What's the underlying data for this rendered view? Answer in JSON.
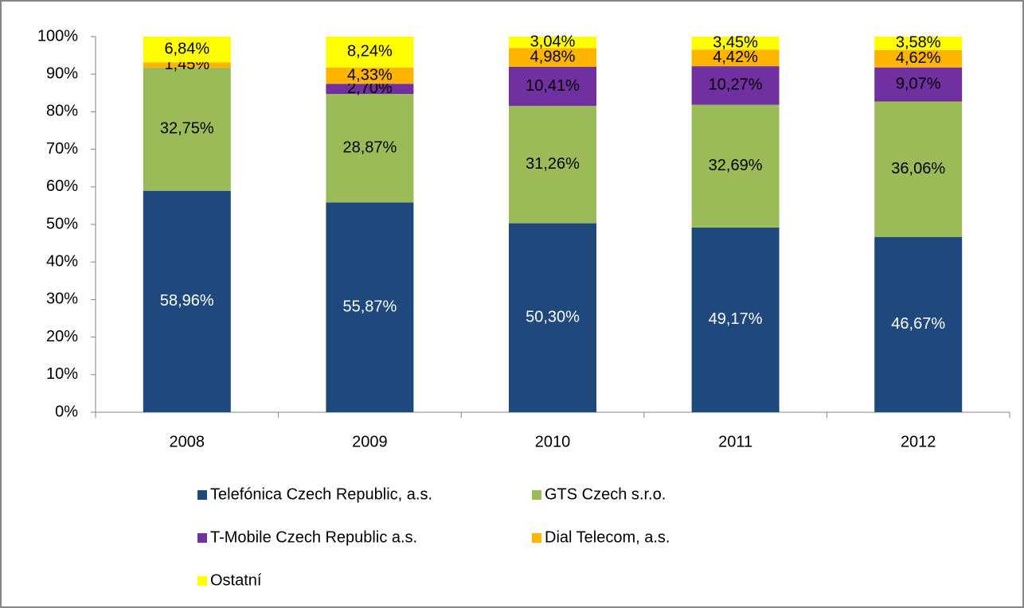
{
  "chart_data": {
    "type": "stacked_bar",
    "categories": [
      "2008",
      "2009",
      "2010",
      "2011",
      "2012"
    ],
    "series": [
      {
        "name": "Telefónica Czech Republic, a.s.",
        "color": "#1f497d",
        "values": [
          58.96,
          55.87,
          50.3,
          49.17,
          46.67
        ],
        "value_labels": [
          "58,96%",
          "55,87%",
          "50,30%",
          "49,17%",
          "46,67%"
        ]
      },
      {
        "name": "GTS Czech s.r.o.",
        "color": "#9bbb59",
        "values": [
          32.75,
          28.87,
          31.26,
          32.69,
          36.06
        ],
        "value_labels": [
          "32,75%",
          "28,87%",
          "31,26%",
          "32,69%",
          "36,06%"
        ]
      },
      {
        "name": "T-Mobile Czech Republic a.s.",
        "color": "#7030a0",
        "values": [
          null,
          2.7,
          10.41,
          10.27,
          9.07
        ],
        "value_labels": [
          null,
          "2,70%",
          "10,41%",
          "10,27%",
          "9,07%"
        ]
      },
      {
        "name": "Dial Telecom, a.s.",
        "color": "#ffb400",
        "values": [
          1.45,
          4.33,
          4.98,
          4.42,
          4.62
        ],
        "value_labels": [
          "1,45%",
          "4,33%",
          "4,98%",
          "4,42%",
          "4,62%"
        ]
      },
      {
        "name": "Ostatní",
        "color": "#ffff00",
        "values": [
          6.84,
          8.24,
          3.04,
          3.45,
          3.58
        ],
        "value_labels": [
          "6,84%",
          "8,24%",
          "3,04%",
          "3,45%",
          "3,58%"
        ]
      }
    ],
    "ylim": [
      0,
      100
    ],
    "yticks": [
      {
        "value": 0,
        "label": "0%"
      },
      {
        "value": 10,
        "label": "10%"
      },
      {
        "value": 20,
        "label": "20%"
      },
      {
        "value": 30,
        "label": "30%"
      },
      {
        "value": 40,
        "label": "40%"
      },
      {
        "value": 50,
        "label": "50%"
      },
      {
        "value": 60,
        "label": "60%"
      },
      {
        "value": 70,
        "label": "70%"
      },
      {
        "value": 80,
        "label": "80%"
      },
      {
        "value": 90,
        "label": "90%"
      },
      {
        "value": 100,
        "label": "100%"
      }
    ],
    "legend": "bottom"
  }
}
